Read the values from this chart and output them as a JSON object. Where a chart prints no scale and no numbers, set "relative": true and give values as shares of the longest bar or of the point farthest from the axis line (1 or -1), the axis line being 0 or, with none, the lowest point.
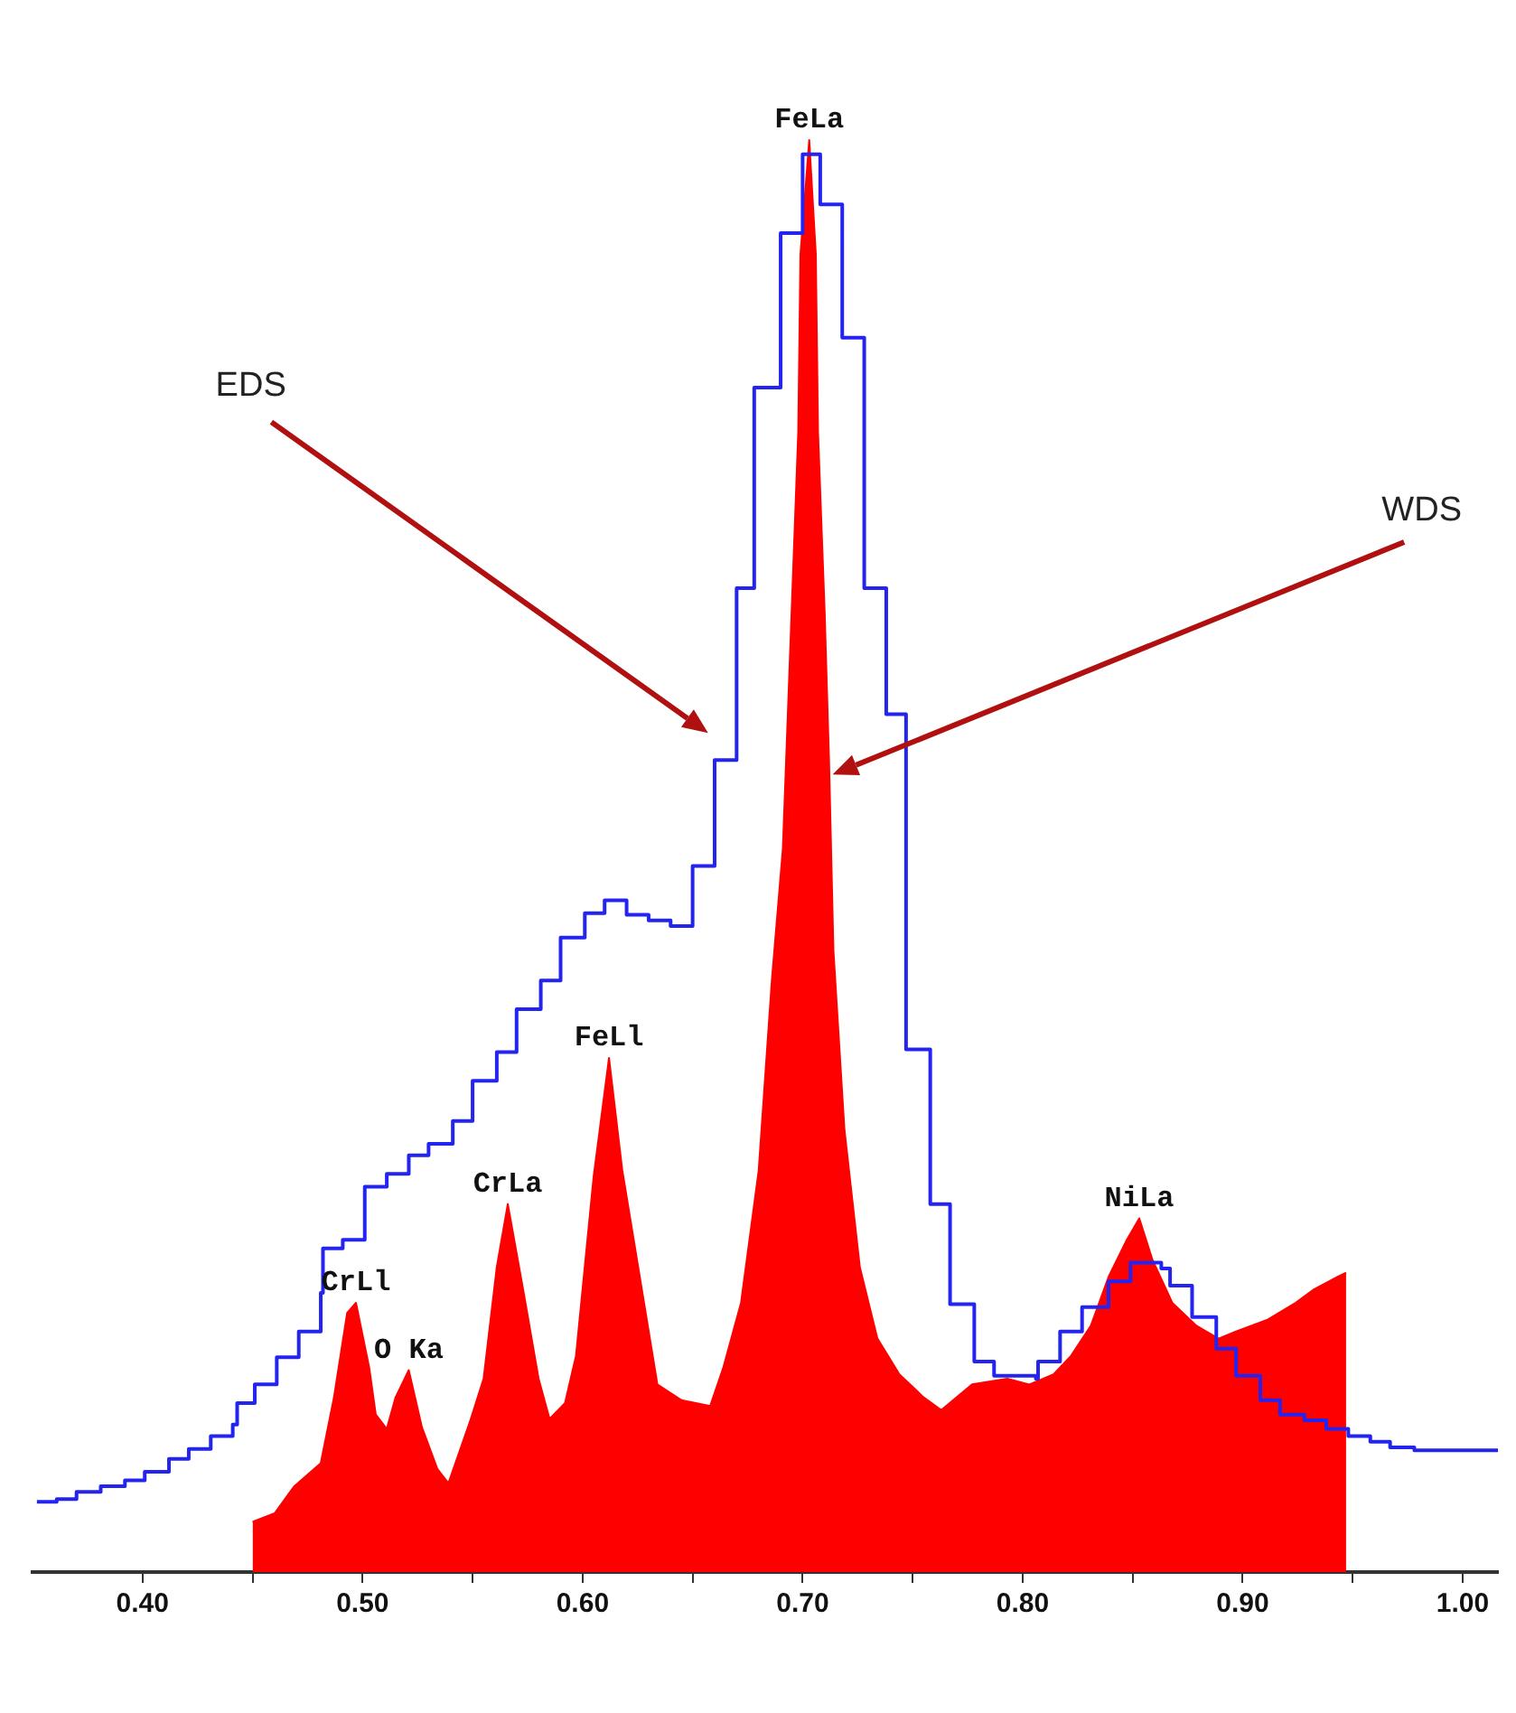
{
  "chart_data": {
    "type": "area",
    "relative": true,
    "xlim": [
      0.35,
      1.016
    ],
    "xticks": [
      {
        "value": 0.4,
        "label": "0.40"
      },
      {
        "value": 0.45,
        "label": null
      },
      {
        "value": 0.5,
        "label": "0.50"
      },
      {
        "value": 0.55,
        "label": null
      },
      {
        "value": 0.6,
        "label": "0.60"
      },
      {
        "value": 0.65,
        "label": null
      },
      {
        "value": 0.7,
        "label": "0.70"
      },
      {
        "value": 0.75,
        "label": null
      },
      {
        "value": 0.8,
        "label": "0.80"
      },
      {
        "value": 0.85,
        "label": null
      },
      {
        "value": 0.9,
        "label": "0.90"
      },
      {
        "value": 0.95,
        "label": null
      },
      {
        "value": 1.0,
        "label": "1.00"
      }
    ],
    "series": [
      {
        "color": "#ff0000",
        "x": [
          0.45,
          0.46,
          0.469,
          0.481,
          0.487,
          0.493,
          0.497,
          0.503,
          0.506,
          0.511,
          0.515,
          0.521,
          0.527,
          0.534,
          0.539,
          0.549,
          0.555,
          0.561,
          0.566,
          0.573,
          0.58,
          0.585,
          0.592,
          0.597,
          0.605,
          0.612,
          0.618,
          0.626,
          0.634,
          0.645,
          0.658,
          0.664,
          0.672,
          0.68,
          0.686,
          0.691,
          0.695,
          0.698,
          0.699,
          0.703,
          0.706,
          0.707,
          0.71,
          0.712,
          0.714,
          0.719,
          0.726,
          0.734,
          0.744,
          0.755,
          0.763,
          0.777,
          0.793,
          0.803,
          0.814,
          0.822,
          0.831,
          0.839,
          0.847,
          0.853,
          0.859,
          0.868,
          0.879,
          0.889,
          0.897,
          0.911,
          0.924,
          0.932,
          0.943,
          0.947
        ],
        "values": [
          0.035,
          0.041,
          0.06,
          0.076,
          0.122,
          0.181,
          0.188,
          0.143,
          0.11,
          0.1,
          0.122,
          0.141,
          0.101,
          0.072,
          0.062,
          0.106,
          0.135,
          0.213,
          0.257,
          0.197,
          0.135,
          0.107,
          0.118,
          0.151,
          0.276,
          0.359,
          0.281,
          0.206,
          0.131,
          0.12,
          0.116,
          0.143,
          0.188,
          0.28,
          0.413,
          0.505,
          0.671,
          0.796,
          0.92,
          1,
          0.92,
          0.796,
          0.671,
          0.567,
          0.434,
          0.309,
          0.213,
          0.163,
          0.138,
          0.122,
          0.113,
          0.131,
          0.135,
          0.131,
          0.138,
          0.151,
          0.172,
          0.206,
          0.231,
          0.247,
          0.218,
          0.188,
          0.172,
          0.163,
          0.168,
          0.176,
          0.188,
          0.197,
          0.206,
          0.209
        ]
      },
      {
        "type": "step",
        "color": "#2424f0",
        "x": [
          0.352,
          0.361,
          0.37,
          0.381,
          0.392,
          0.401,
          0.412,
          0.421,
          0.431,
          0.441,
          0.443,
          0.451,
          0.461,
          0.471,
          0.481,
          0.482,
          0.491,
          0.501,
          0.511,
          0.521,
          0.53,
          0.541,
          0.55,
          0.561,
          0.57,
          0.581,
          0.59,
          0.601,
          0.61,
          0.62,
          0.63,
          0.64,
          0.65,
          0.66,
          0.67,
          0.678,
          0.69,
          0.7,
          0.708,
          0.718,
          0.728,
          0.738,
          0.747,
          0.758,
          0.767,
          0.778,
          0.787,
          0.806,
          0.807,
          0.817,
          0.827,
          0.839,
          0.849,
          0.863,
          0.867,
          0.877,
          0.888,
          0.897,
          0.908,
          0.917,
          0.928,
          0.938,
          0.948,
          0.958,
          0.967,
          0.978,
          1.016
        ],
        "values": [
          0.049,
          0.051,
          0.056,
          0.06,
          0.064,
          0.07,
          0.079,
          0.086,
          0.095,
          0.103,
          0.118,
          0.131,
          0.15,
          0.168,
          0.195,
          0.226,
          0.232,
          0.269,
          0.278,
          0.291,
          0.299,
          0.315,
          0.343,
          0.363,
          0.393,
          0.413,
          0.443,
          0.46,
          0.469,
          0.459,
          0.455,
          0.451,
          0.493,
          0.567,
          0.687,
          0.827,
          0.935,
          0.99,
          0.955,
          0.862,
          0.687,
          0.599,
          0.365,
          0.257,
          0.187,
          0.147,
          0.137,
          0.135,
          0.147,
          0.168,
          0.185,
          0.203,
          0.216,
          0.212,
          0.2,
          0.178,
          0.156,
          0.137,
          0.12,
          0.11,
          0.106,
          0.1,
          0.095,
          0.091,
          0.087,
          0.085,
          0.085
        ]
      }
    ],
    "annotations": [
      "EDS",
      "WDS",
      {
        "text": "FeLa",
        "x": 0.703,
        "y": 1
      },
      {
        "text": "CrLl",
        "x": 0.497,
        "y": 0.188
      },
      {
        "text": "O Ka",
        "x": 0.521,
        "y": 0.141
      },
      {
        "text": "CrLa",
        "x": 0.566,
        "y": 0.257
      },
      {
        "text": "FeLl",
        "x": 0.612,
        "y": 0.359
      },
      {
        "text": "NiLa",
        "x": 0.853,
        "y": 0.247
      }
    ]
  }
}
